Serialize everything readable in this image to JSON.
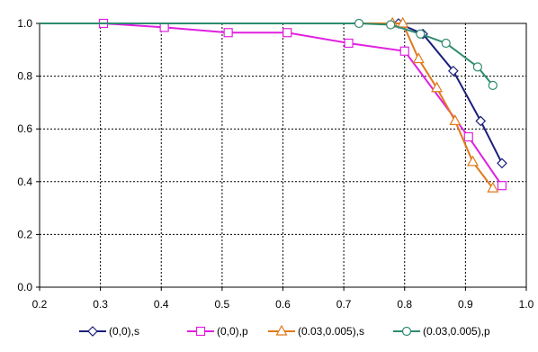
{
  "chart_data": {
    "type": "line",
    "title": "",
    "xlabel": "",
    "ylabel": "",
    "xlim": [
      0.2,
      1.0
    ],
    "ylim": [
      0.0,
      1.0
    ],
    "x_ticks": [
      "0.2",
      "0.3",
      "0.4",
      "0.5",
      "0.6",
      "0.7",
      "0.8",
      "0.9",
      "1.0"
    ],
    "y_ticks": [
      "0.0",
      "0.2",
      "0.4",
      "0.6",
      "0.8",
      "1.0"
    ],
    "grid": true,
    "legend_position": "bottom",
    "series": [
      {
        "name": "(0,0),s",
        "color": "#1a1f7a",
        "marker": "diamond",
        "points": [
          [
            0.2,
            1.0
          ],
          [
            0.79,
            1.0
          ],
          [
            0.83,
            0.96
          ],
          [
            0.88,
            0.82
          ],
          [
            0.925,
            0.63
          ],
          [
            0.96,
            0.47
          ]
        ]
      },
      {
        "name": "(0,0),p",
        "color": "#e020e0",
        "marker": "square",
        "points": [
          [
            0.2,
            1.0
          ],
          [
            0.305,
            1.0
          ],
          [
            0.405,
            0.985
          ],
          [
            0.51,
            0.965
          ],
          [
            0.607,
            0.965
          ],
          [
            0.708,
            0.925
          ],
          [
            0.8,
            0.895
          ],
          [
            0.905,
            0.57
          ],
          [
            0.96,
            0.385
          ]
        ]
      },
      {
        "name": "(0.03,0.005),s",
        "color": "#e07a1a",
        "marker": "triangle",
        "points": [
          [
            0.2,
            1.0
          ],
          [
            0.78,
            1.0
          ],
          [
            0.797,
            1.0
          ],
          [
            0.823,
            0.865
          ],
          [
            0.853,
            0.755
          ],
          [
            0.883,
            0.63
          ],
          [
            0.912,
            0.475
          ],
          [
            0.945,
            0.375
          ]
        ]
      },
      {
        "name": "(0.03,0.005),p",
        "color": "#2e8b6f",
        "marker": "circle",
        "points": [
          [
            0.2,
            1.0
          ],
          [
            0.725,
            1.0
          ],
          [
            0.777,
            0.995
          ],
          [
            0.826,
            0.96
          ],
          [
            0.868,
            0.925
          ],
          [
            0.92,
            0.835
          ],
          [
            0.945,
            0.765
          ]
        ]
      }
    ]
  }
}
